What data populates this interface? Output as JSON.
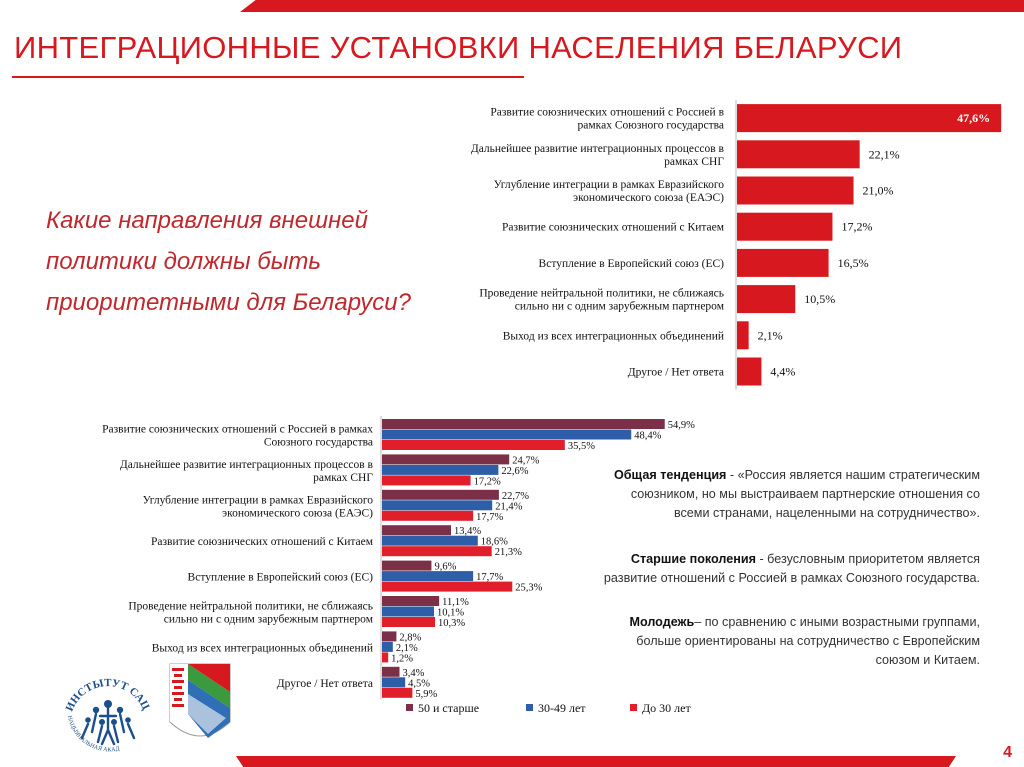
{
  "page": {
    "title": "ИНТЕГРАЦИОННЫЕ УСТАНОВКИ НАСЕЛЕНИЯ БЕЛАРУСИ",
    "question": "Какие направления внешней политики должны быть приоритетными для Беларуси?",
    "page_number": "4",
    "logo_text": "ИНСТЫТУТ САЦЫЯЛОГІІ · НАЦЫЯНАЛЬНАЯ АКАДЭМІЯ НАВУК БЕЛАРУСІ"
  },
  "notes": [
    {
      "bold": "Общая тенденция",
      "text": " - «Россия является нашим стратегическим союзником, но мы выстраиваем партнерские отношения со всеми странами, нацеленными на сотрудничество»."
    },
    {
      "bold": "Старшие поколения",
      "text": " - безусловным приоритетом является развитие отношений с Россией в рамках Союзного государства."
    },
    {
      "bold": "Молодежь",
      "text": "– по сравнению с иными возрастными группами, больше ориентированы на сотрудничество с Европейским союзом и Китаем."
    }
  ],
  "colors": {
    "accent": "#d7191f",
    "older": "#7b3048",
    "middle": "#2e5ea7",
    "young": "#e01f2b"
  },
  "chart_data": [
    {
      "type": "bar",
      "orientation": "horizontal",
      "categories": [
        "Развитие союзнических отношений с Россией в рамках Союзного государства",
        "Дальнейшее развитие интеграционных процессов в рамках СНГ",
        "Углубление интеграции в рамках Евразийского экономического союза (ЕАЭС)",
        "Развитие союзнических отношений с Китаем",
        "Вступление в Европейский союз (ЕС)",
        "Проведение нейтральной политики, не сближаясь сильно ни с одним зарубежным партнером",
        "Выход из всех интеграционных объединений",
        "Другое / Нет ответа"
      ],
      "values": [
        47.6,
        22.1,
        21.0,
        17.2,
        16.5,
        10.5,
        2.1,
        4.4
      ],
      "labels": [
        "47,6%",
        "22,1%",
        "21,0%",
        "17,2%",
        "16,5%",
        "10,5%",
        "2,1%",
        "4,4%"
      ],
      "unit": "%"
    },
    {
      "type": "bar",
      "orientation": "horizontal",
      "categories": [
        "Развитие союзнических отношений с Россией в рамках Союзного государства",
        "Дальнейшее развитие интеграционных процессов в рамках СНГ",
        "Углубление интеграции в рамках Евразийского экономического союза (ЕАЭС)",
        "Развитие союзнических отношений с Китаем",
        "Вступление в Европейский союз (ЕС)",
        "Проведение нейтральной политики, не сближаясь сильно ни с одним зарубежным партнером",
        "Выход из всех интеграционных объединений",
        "Другое / Нет ответа"
      ],
      "series": [
        {
          "name": "50 и старше",
          "values": [
            54.9,
            24.7,
            22.7,
            13.4,
            9.6,
            11.1,
            2.8,
            3.4
          ],
          "labels": [
            "54,9%",
            "24,7%",
            "22,7%",
            "13,4%",
            "9,6%",
            "11,1%",
            "2,8%",
            "3,4%"
          ]
        },
        {
          "name": "30-49 лет",
          "values": [
            48.4,
            22.6,
            21.4,
            18.6,
            17.7,
            10.1,
            2.1,
            4.5
          ],
          "labels": [
            "48,4%",
            "22,6%",
            "21,4%",
            "18,6%",
            "17,7%",
            "10,1%",
            "2,1%",
            "4,5%"
          ]
        },
        {
          "name": "До 30 лет",
          "values": [
            35.5,
            17.2,
            17.7,
            21.3,
            25.3,
            10.3,
            1.2,
            5.9
          ],
          "labels": [
            "35,5%",
            "17,2%",
            "17,7%",
            "21,3%",
            "25,3%",
            "10,3%",
            "1,2%",
            "5,9%"
          ]
        }
      ],
      "legend": "bottom",
      "unit": "%"
    }
  ]
}
